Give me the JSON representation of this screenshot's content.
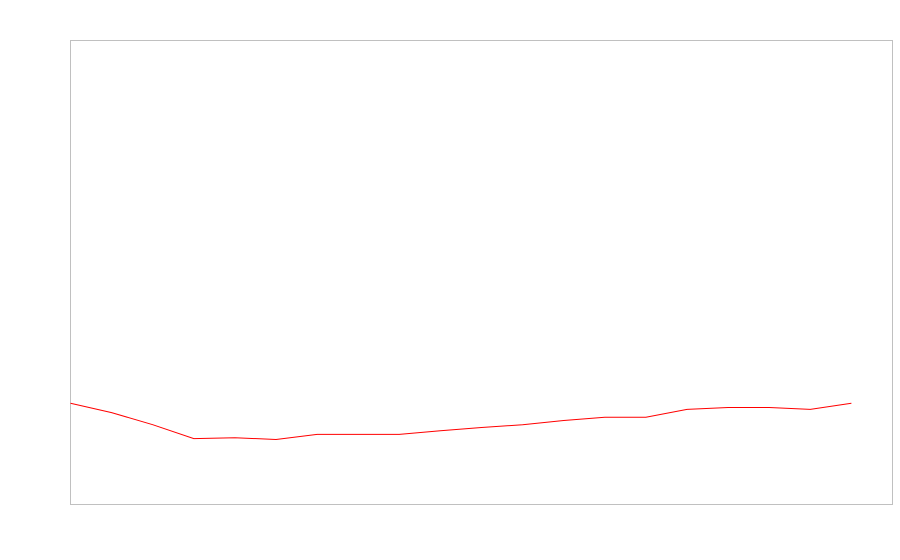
{
  "chart_data": {
    "type": "line",
    "title": "",
    "xlabel": "",
    "ylabel": "",
    "x": [
      0,
      1,
      2,
      3,
      4,
      5,
      6,
      7,
      8,
      9,
      10,
      11,
      12,
      13,
      14,
      15,
      16,
      17,
      18,
      19
    ],
    "series": [
      {
        "values": [
          21.8,
          19.8,
          17.2,
          14.2,
          14.4,
          14.0,
          15.1,
          15.1,
          15.1,
          15.9,
          16.6,
          17.2,
          18.1,
          18.8,
          18.8,
          20.5,
          20.9,
          20.9,
          20.5,
          21.8
        ],
        "color": "#ff0000"
      }
    ],
    "xlim": [
      0,
      20
    ],
    "ylim": [
      0,
      100
    ],
    "grid": false,
    "legend": "none",
    "frame_color": "#c0c0c0"
  }
}
